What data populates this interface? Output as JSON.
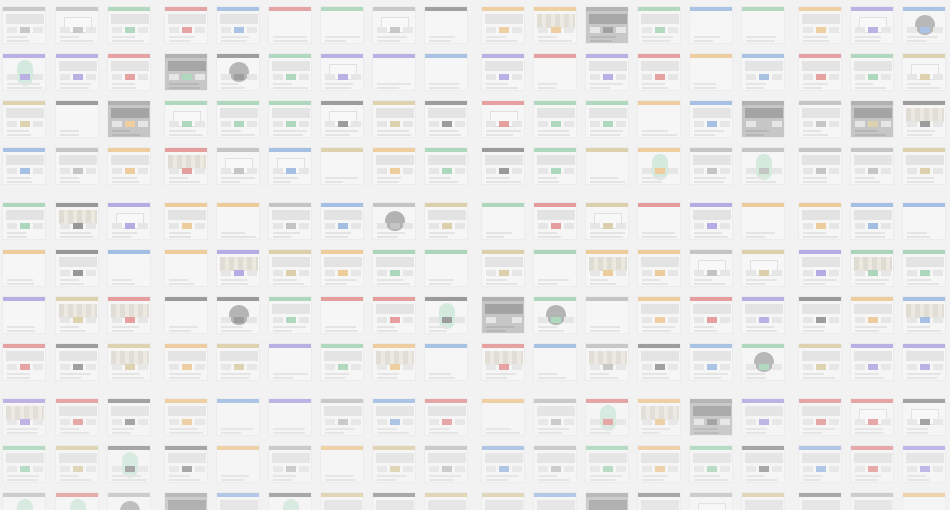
{
  "background_color": "#f2f2f2",
  "tile_border_color": "#e6e6e6",
  "tile_kinds": [
    "web",
    "blank",
    "dark",
    "circle",
    "green",
    "collage",
    "form"
  ],
  "accent_palette": [
    "#d94b4b",
    "#5a8fd6",
    "#e9a84a",
    "#6bbf8a",
    "#9a9a9a",
    "#c9b26b",
    "#7e6bd6",
    "#444444"
  ]
}
